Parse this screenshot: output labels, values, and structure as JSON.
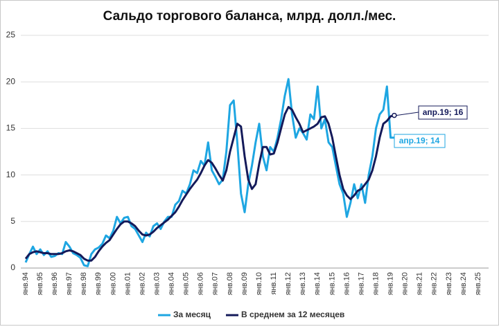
{
  "chart_data": {
    "type": "line",
    "title": "Сальдо торгового баланса, млрд. долл./мес.",
    "categories": [
      "янв.94",
      null,
      null,
      null,
      "янв.95",
      null,
      null,
      null,
      "янв.96",
      null,
      null,
      null,
      "янв.97",
      null,
      null,
      null,
      "янв.98",
      null,
      null,
      null,
      "янв.99",
      null,
      null,
      null,
      "янв.00",
      null,
      null,
      null,
      "янв.01",
      null,
      null,
      null,
      "янв.02",
      null,
      null,
      null,
      "янв.03",
      null,
      null,
      null,
      "янв.04",
      null,
      null,
      null,
      "янв.05",
      null,
      null,
      null,
      "янв.06",
      null,
      null,
      null,
      "янв.07",
      null,
      null,
      null,
      "янв.08",
      null,
      null,
      null,
      "янв.09",
      null,
      null,
      null,
      "янв.10",
      null,
      null,
      null,
      "янв.11",
      null,
      null,
      null,
      "янв.12",
      null,
      null,
      null,
      "янв.13",
      null,
      null,
      null,
      "янв.14",
      null,
      null,
      null,
      "янв.15",
      null,
      null,
      null,
      "янв.16",
      null,
      null,
      null,
      "янв.17",
      null,
      null,
      null,
      "янв.18",
      null,
      null,
      null,
      "янв.19",
      null,
      null,
      null,
      "янв.20",
      null,
      null,
      null,
      "янв.21",
      null,
      null,
      null,
      "янв.22",
      null,
      null,
      null,
      "янв.23",
      null,
      null,
      null,
      "янв.24",
      null,
      null,
      null,
      "янв.25",
      null,
      null,
      null
    ],
    "series": [
      {
        "name": "За месяц",
        "color": "#1ea6e2",
        "width": 3,
        "values": [
          0.6,
          1.5,
          2.3,
          1.5,
          2.0,
          1.4,
          1.8,
          1.2,
          1.3,
          1.6,
          1.5,
          2.8,
          2.3,
          1.6,
          1.4,
          1.1,
          0.3,
          0.2,
          1.5,
          2.0,
          2.2,
          2.6,
          3.5,
          3.2,
          4.0,
          5.5,
          4.8,
          5.4,
          5.5,
          4.5,
          4.2,
          3.5,
          2.8,
          3.8,
          3.4,
          4.5,
          4.8,
          4.2,
          5.0,
          5.5,
          5.5,
          6.8,
          7.2,
          8.3,
          8.0,
          9.0,
          10.5,
          10.2,
          11.5,
          11.0,
          13.5,
          10.5,
          9.8,
          9.0,
          9.5,
          12.5,
          17.5,
          18.0,
          13.5,
          8.0,
          6.0,
          9.0,
          11.0,
          13.5,
          15.5,
          12.0,
          10.5,
          13.0,
          12.5,
          14.0,
          16.0,
          18.5,
          20.3,
          16.5,
          14.0,
          15.0,
          14.5,
          13.8,
          16.5,
          16.0,
          19.5,
          15.0,
          16.0,
          13.5,
          13.0,
          11.0,
          9.0,
          8.0,
          5.5,
          7.0,
          9.0,
          7.5,
          9.0,
          7.0,
          10.0,
          12.0,
          15.0,
          16.5,
          17.0,
          19.5,
          14.0,
          14.0,
          null,
          null,
          null,
          null,
          null,
          null,
          null,
          null,
          null,
          null,
          null,
          null,
          null,
          null,
          null,
          null,
          null,
          null,
          null,
          null,
          null,
          null,
          null,
          null,
          null,
          null
        ]
      },
      {
        "name": "В среднем за 12 месяцев",
        "color": "#141a5a",
        "width": 3,
        "values": [
          1.0,
          1.5,
          1.7,
          1.8,
          1.7,
          1.6,
          1.6,
          1.5,
          1.5,
          1.5,
          1.6,
          1.8,
          1.9,
          1.8,
          1.6,
          1.4,
          1.0,
          0.8,
          0.8,
          1.2,
          1.8,
          2.3,
          2.7,
          3.0,
          3.6,
          4.2,
          4.7,
          5.0,
          5.0,
          4.8,
          4.5,
          4.0,
          3.6,
          3.5,
          3.6,
          3.9,
          4.3,
          4.6,
          4.9,
          5.2,
          5.6,
          6.0,
          6.6,
          7.3,
          7.9,
          8.5,
          9.0,
          9.5,
          10.2,
          11.0,
          11.6,
          11.3,
          10.7,
          10.0,
          9.4,
          10.5,
          12.5,
          14.0,
          15.5,
          15.2,
          12.0,
          9.5,
          8.5,
          9.0,
          11.2,
          13.0,
          13.0,
          12.2,
          12.3,
          13.5,
          15.0,
          16.5,
          17.3,
          17.0,
          16.2,
          15.5,
          14.6,
          14.8,
          15.0,
          15.2,
          15.5,
          16.2,
          16.3,
          15.5,
          14.0,
          12.0,
          10.0,
          8.5,
          7.8,
          7.4,
          7.8,
          8.3,
          8.5,
          9.0,
          9.5,
          10.5,
          12.0,
          14.0,
          15.5,
          15.8,
          16.3,
          16.4,
          null,
          null,
          null,
          null,
          null,
          null,
          null,
          null,
          null,
          null,
          null,
          null,
          null,
          null,
          null,
          null,
          null,
          null,
          null,
          null,
          null,
          null,
          null,
          null,
          null,
          null
        ]
      }
    ],
    "annotations": [
      "апр.19; 16",
      "апр.19; 14"
    ],
    "ylim": [
      0,
      25
    ],
    "yticks": [
      0,
      5,
      10,
      15,
      20,
      25
    ],
    "grid": true,
    "legend": "bottom"
  }
}
